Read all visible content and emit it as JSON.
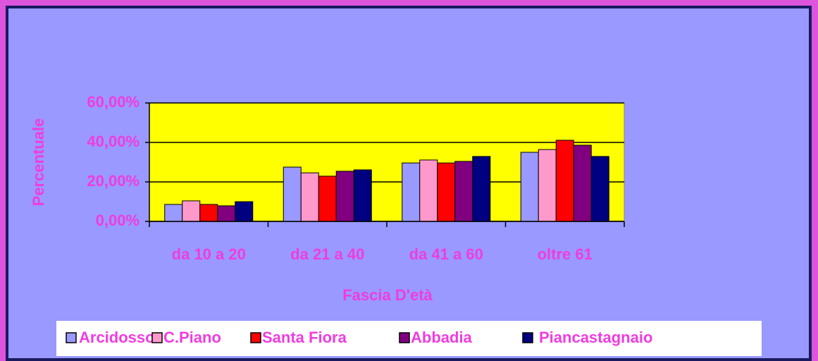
{
  "chart_data": {
    "type": "bar",
    "x_label": "Fascia D'età",
    "y_label": "Percentuale",
    "categories": [
      "da 10 a 20",
      "da 21 a 40",
      "da 41 a 60",
      "oltre 61"
    ],
    "series": [
      {
        "name": "Arcidosso",
        "color": "#9999ff",
        "values": [
          8.6,
          27.5,
          29.6,
          35.0
        ]
      },
      {
        "name": "C.Piano",
        "color": "#ff99cc",
        "values": [
          10.4,
          24.6,
          31.1,
          36.4
        ]
      },
      {
        "name": "Santa Fiora",
        "color": "#ff0000",
        "values": [
          8.6,
          22.9,
          29.6,
          41.1
        ]
      },
      {
        "name": "Abbadia",
        "color": "#800080",
        "values": [
          7.9,
          25.4,
          30.4,
          38.6
        ]
      },
      {
        "name": "Piancastagnaio",
        "color": "#000080",
        "values": [
          10.0,
          26.1,
          32.9,
          32.9
        ]
      }
    ],
    "ylim": [
      0,
      60
    ],
    "yticks": [
      {
        "value": 0,
        "label": "0,00%"
      },
      {
        "value": 20,
        "label": "20,00%"
      },
      {
        "value": 40,
        "label": "40,00%"
      },
      {
        "value": 60,
        "label": "60,00%"
      }
    ],
    "grid": true,
    "legend": "bottom"
  }
}
